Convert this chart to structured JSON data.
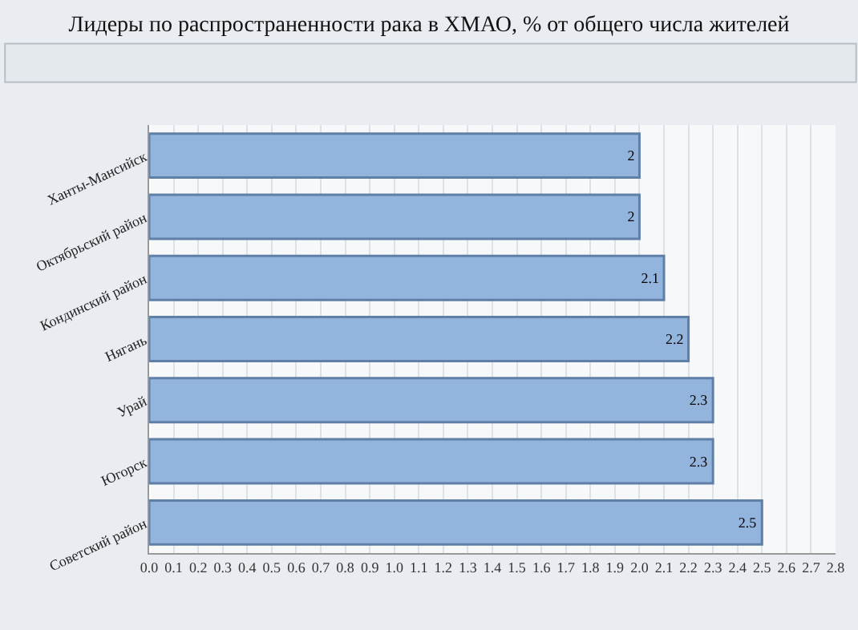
{
  "chart_data": {
    "type": "bar",
    "orientation": "horizontal",
    "title": "Лидеры по распространенности рака в ХМАО, % от общего числа жителей",
    "categories": [
      "Ханты-Мансийск",
      "Октябрьский район",
      "Кондинский район",
      "Нягань",
      "Урай",
      "Югорск",
      "Советский район"
    ],
    "values": [
      2,
      2,
      2.1,
      2.2,
      2.3,
      2.3,
      2.5
    ],
    "color": "#93b4dc",
    "data_labels": true,
    "xlim": [
      0,
      2.8
    ],
    "xticks": [
      {
        "value": 0,
        "label": "0.0"
      },
      0.1,
      0.2,
      0.3,
      0.4,
      0.5,
      0.6,
      0.7,
      0.8,
      0.9,
      {
        "value": 1,
        "label": "1.0"
      },
      1.1,
      1.2,
      1.3,
      1.4,
      1.5,
      1.6,
      1.7,
      1.8,
      1.9,
      {
        "value": 2,
        "label": "2.0"
      },
      2.1,
      2.2,
      2.3,
      2.4,
      2.5,
      2.6,
      2.7,
      2.8
    ],
    "grid": "x",
    "legend": false
  }
}
